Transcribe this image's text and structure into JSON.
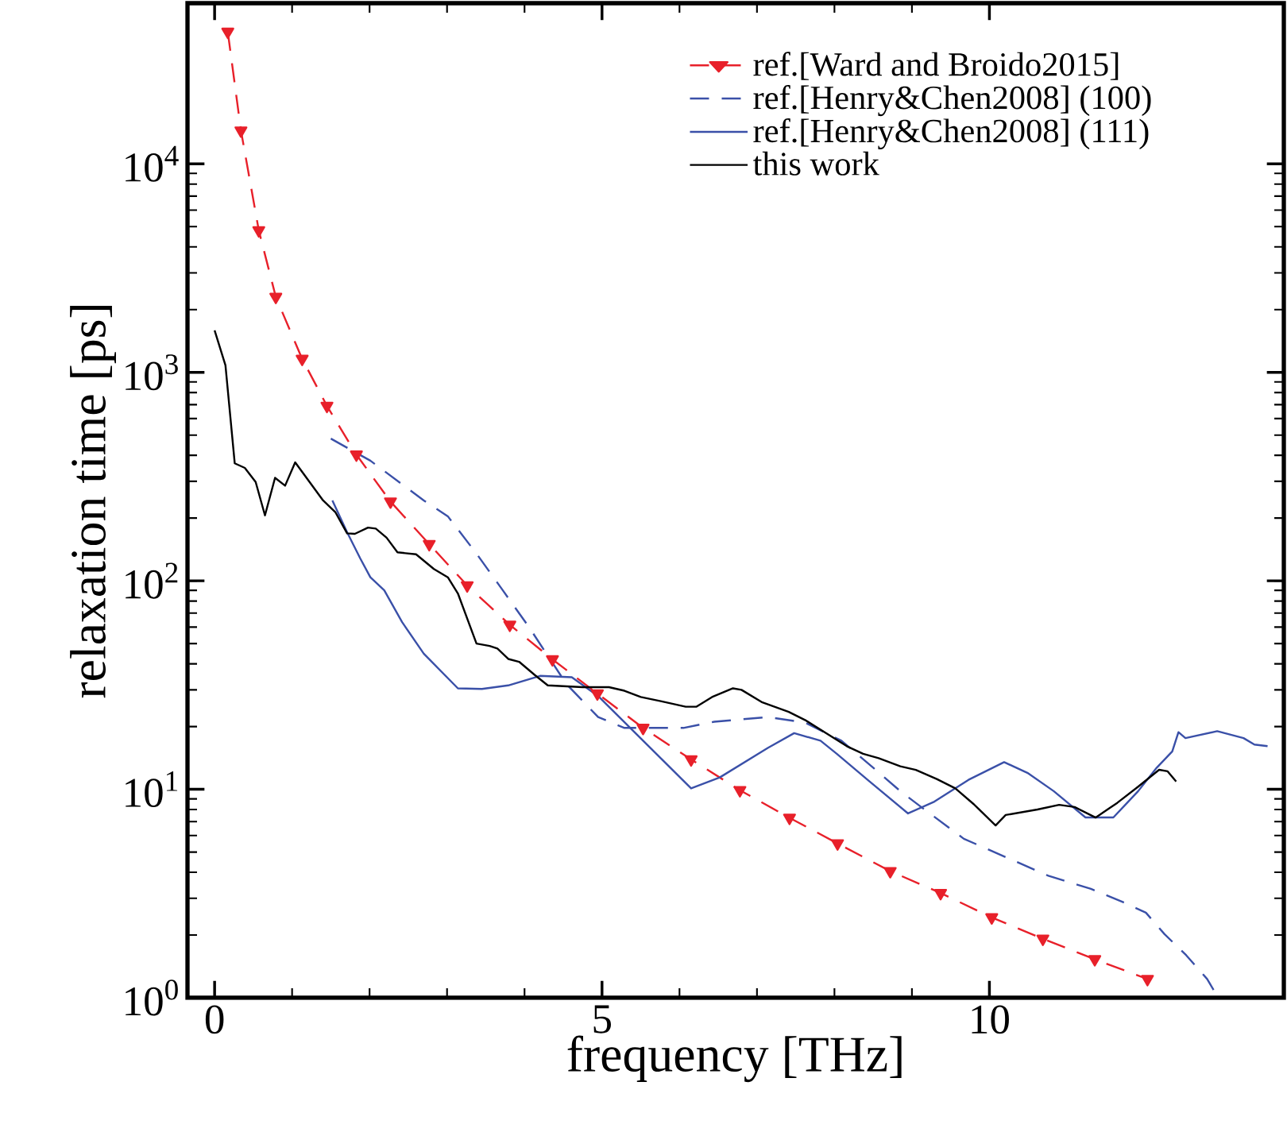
{
  "chart_data": {
    "type": "line",
    "xlabel": "frequency [THz]",
    "ylabel": "relaxation time [ps]",
    "xlim": [
      -0.35,
      13.8
    ],
    "ylim": [
      1,
      59000
    ],
    "xticks": [
      0,
      5,
      10
    ],
    "yticks": [
      {
        "value": 1,
        "label": "10$^{0}$"
      },
      {
        "value": 10,
        "label": "10$^{1}$"
      },
      {
        "value": 100,
        "label": "10$^{2}$"
      },
      {
        "value": 1000,
        "label": "10$^{3}$"
      },
      {
        "value": 10000,
        "label": "10$^{4}$"
      }
    ],
    "log": "y",
    "legend": "top right",
    "series": [
      {
        "name": "ref.[Ward and Broido2015]",
        "color": "#e8202a",
        "line_style": "dashed",
        "marker": "triangle",
        "x": [
          0.17,
          0.34,
          0.57,
          0.79,
          1.13,
          1.45,
          1.83,
          2.27,
          2.77,
          3.26,
          3.81,
          4.36,
          4.94,
          5.53,
          6.15,
          6.78,
          7.42,
          8.04,
          8.72,
          9.37,
          10.03,
          10.69,
          11.36,
          12.04
        ],
        "values": [
          43000,
          14450,
          4800,
          2300,
          1160,
          690,
          403,
          240,
          150,
          95,
          61.5,
          42,
          28.8,
          19.7,
          13.9,
          9.9,
          7.3,
          5.5,
          4.05,
          3.18,
          2.43,
          1.92,
          1.53,
          1.23
        ]
      },
      {
        "name": "ref.[Henry&Chen2008] (100)",
        "color": "#3a50a8",
        "line_style": "dashed",
        "marker": "none",
        "x": [
          1.5,
          2.01,
          2.7,
          3.01,
          3.38,
          3.72,
          4.06,
          4.54,
          4.95,
          5.29,
          6.05,
          6.45,
          7.14,
          7.62,
          8.09,
          8.5,
          8.85,
          9.12,
          9.67,
          10.21,
          10.76,
          11.31,
          11.72,
          12.02,
          12.26,
          12.54,
          12.81,
          12.92
        ],
        "values": [
          481,
          377,
          243,
          204,
          135,
          90,
          59.8,
          32,
          22.2,
          19.7,
          19.7,
          21.1,
          22.2,
          20.9,
          17.1,
          12.7,
          9.8,
          8.22,
          5.79,
          4.73,
          3.85,
          3.33,
          2.88,
          2.56,
          2.02,
          1.6,
          1.23,
          1.05
        ]
      },
      {
        "name": "ref.[Henry&Chen2008] (111)",
        "color": "#3a50a8",
        "line_style": "solid",
        "marker": "none",
        "x": [
          1.52,
          1.71,
          1.88,
          2.01,
          2.19,
          2.42,
          2.7,
          3.14,
          3.45,
          3.79,
          4.2,
          4.61,
          4.95,
          6.15,
          6.52,
          7.14,
          7.48,
          7.82,
          8.03,
          8.44,
          8.95,
          9.29,
          9.73,
          10.19,
          10.49,
          10.83,
          11.24,
          11.6,
          11.92,
          12.16,
          12.36,
          12.44,
          12.53,
          12.94,
          13.28,
          13.42,
          13.59
        ],
        "values": [
          243,
          171,
          128,
          104,
          90,
          63.4,
          44.7,
          30.5,
          30.3,
          31.5,
          35,
          34.5,
          28,
          10.1,
          11.4,
          15.8,
          18.6,
          17.1,
          14.8,
          11.0,
          7.66,
          8.73,
          11.1,
          13.5,
          12.0,
          9.8,
          7.33,
          7.33,
          9.8,
          12.7,
          15.2,
          18.8,
          17.6,
          19.0,
          17.6,
          16.4,
          16.1
        ]
      },
      {
        "name": "this work",
        "color": "#000000",
        "line_style": "solid",
        "marker": "none",
        "x": [
          0,
          0.14,
          0.26,
          0.39,
          0.53,
          0.65,
          0.78,
          0.91,
          1.04,
          1.4,
          1.56,
          1.71,
          1.81,
          1.98,
          2.08,
          2.22,
          2.36,
          2.6,
          2.83,
          3.01,
          3.14,
          3.38,
          3.55,
          3.65,
          3.79,
          3.93,
          4.13,
          4.3,
          4.75,
          5.09,
          5.29,
          5.5,
          5.77,
          6.08,
          6.22,
          6.42,
          6.69,
          6.8,
          7.07,
          7.41,
          7.62,
          7.89,
          8.16,
          8.37,
          8.57,
          8.85,
          9.05,
          9.32,
          9.56,
          9.8,
          10.08,
          10.21,
          10.62,
          10.9,
          11.1,
          11.37,
          11.65,
          11.92,
          12.19,
          12.3,
          12.41
        ],
        "values": [
          1590,
          1080,
          366,
          348,
          298,
          206,
          312,
          286,
          370,
          243,
          213,
          169,
          168,
          180,
          178,
          161,
          137,
          134,
          114,
          104,
          87,
          50,
          48.7,
          47.3,
          42.2,
          40.9,
          35.4,
          31.5,
          30.9,
          30.9,
          29.7,
          27.7,
          26.4,
          24.9,
          24.9,
          27.7,
          30.5,
          30.0,
          26.1,
          23.5,
          21.5,
          18.6,
          16.1,
          14.8,
          14.1,
          12.9,
          12.4,
          11.2,
          10.1,
          8.47,
          6.71,
          7.53,
          8.0,
          8.42,
          8.22,
          7.32,
          8.61,
          10.3,
          12.4,
          12.2,
          10.9
        ]
      }
    ]
  }
}
